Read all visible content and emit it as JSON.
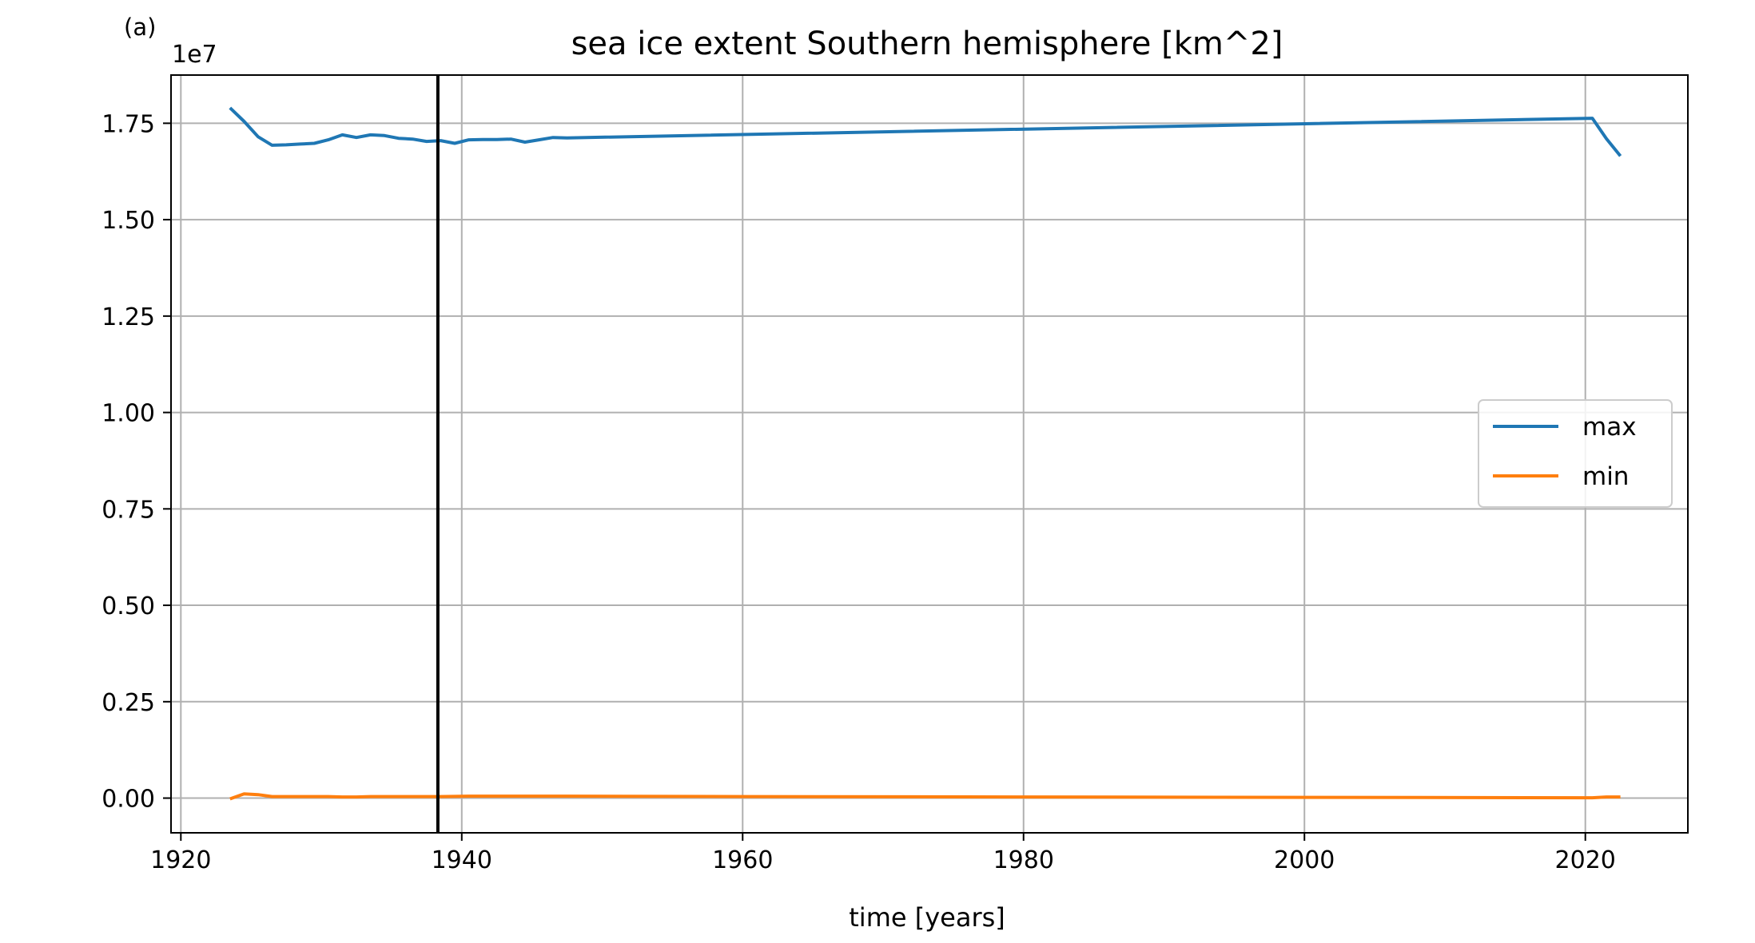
{
  "panel_label": "(a)",
  "chart_data": {
    "type": "line",
    "title": "sea ice extent Southern hemisphere [km^2]",
    "xlabel": "time [years]",
    "ylabel": "",
    "y_offset_label": "1e7",
    "xlim": [
      1919.3,
      2027.3
    ],
    "ylim": [
      -0.09,
      1.875
    ],
    "y_scale": 10000000,
    "xticks": [
      1920,
      1940,
      1960,
      1980,
      2000,
      2020
    ],
    "xtick_labels": [
      "1920",
      "1940",
      "1960",
      "1980",
      "2000",
      "2020"
    ],
    "yticks": [
      0.0,
      0.25,
      0.5,
      0.75,
      1.0,
      1.25,
      1.5,
      1.75
    ],
    "ytick_labels": [
      "0.00",
      "0.25",
      "0.50",
      "0.75",
      "1.00",
      "1.25",
      "1.50",
      "1.75"
    ],
    "grid": true,
    "legend_position": "center-right",
    "vertical_line": {
      "x": 1938.3,
      "color": "#000000"
    },
    "series": [
      {
        "name": "max",
        "color": "#1f77b4",
        "x": [
          1923.5,
          1924.5,
          1925.5,
          1926.5,
          1927.5,
          1928.5,
          1929.5,
          1930.5,
          1931.5,
          1932.5,
          1933.5,
          1934.5,
          1935.5,
          1936.5,
          1937.5,
          1938.5,
          1939.5,
          1940.5,
          1941.5,
          1942.5,
          1943.5,
          1944.5,
          1945.5,
          1946.5,
          1947.5,
          2020.5,
          2021.5,
          2022.5
        ],
        "y": [
          1.79,
          1.755,
          1.715,
          1.693,
          1.694,
          1.696,
          1.698,
          1.707,
          1.72,
          1.713,
          1.72,
          1.718,
          1.711,
          1.709,
          1.703,
          1.705,
          1.698,
          1.707,
          1.708,
          1.708,
          1.709,
          1.701,
          1.707,
          1.713,
          1.712,
          1.763,
          1.71,
          1.665
        ]
      },
      {
        "name": "min",
        "color": "#ff7f0e",
        "x": [
          1923.5,
          1924.5,
          1925.5,
          1926.5,
          1927.5,
          1928.5,
          1929.5,
          1930.5,
          1931.5,
          1932.5,
          1933.5,
          1934.5,
          1935.5,
          1936.5,
          1937.5,
          1938.5,
          1940.5,
          1945.5,
          1947.5,
          1960,
          1980,
          2000,
          2020.5,
          2021.5,
          2022.5
        ],
        "y": [
          -0.002,
          0.011,
          0.009,
          0.004,
          0.004,
          0.004,
          0.004,
          0.004,
          0.003,
          0.003,
          0.004,
          0.004,
          0.004,
          0.004,
          0.004,
          0.004,
          0.005,
          0.005,
          0.005,
          0.004,
          0.003,
          0.002,
          0.001,
          0.003,
          0.003
        ]
      }
    ]
  }
}
